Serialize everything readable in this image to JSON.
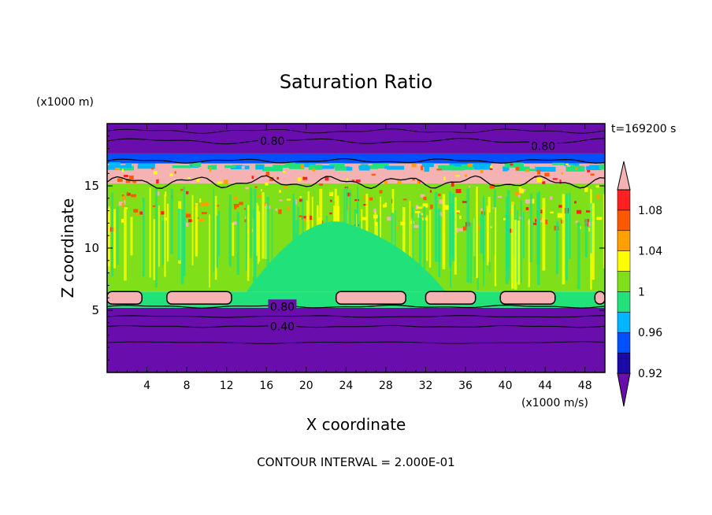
{
  "chart_data": {
    "type": "heatmap",
    "title": "Saturation Ratio",
    "xlabel": "X coordinate",
    "ylabel": "Z coordinate",
    "x_units": "(x1000 m/s)",
    "y_units": "(x1000 m)",
    "time_label": "t=169200 s",
    "footer": "CONTOUR INTERVAL = 2.000E-01",
    "xlim": [
      0,
      50
    ],
    "ylim": [
      0,
      20
    ],
    "x_ticks": [
      4,
      8,
      12,
      16,
      20,
      24,
      28,
      32,
      36,
      40,
      44,
      48
    ],
    "y_ticks": [
      5,
      10,
      15
    ],
    "contour_labels": [
      {
        "text": "0.80",
        "x": 16.6,
        "z": 18.6
      },
      {
        "text": "0.80",
        "x": 43.8,
        "z": 18.2
      },
      {
        "text": "0.80",
        "x": 17.6,
        "z": 5.3
      },
      {
        "text": "0.40",
        "x": 17.6,
        "z": 3.7
      }
    ],
    "layers": [
      {
        "z_from": 0.0,
        "z_to": 5.2,
        "level": "below 0.92",
        "color": "#6a0dad"
      },
      {
        "z_from": 5.2,
        "z_to": 6.5,
        "level": "0.98",
        "color": "#21e17b"
      },
      {
        "z_from": 6.5,
        "z_to": 15.2,
        "level": "0.98-1.02",
        "color": "#7fe01a"
      },
      {
        "z_from": 15.2,
        "z_to": 16.8,
        "level": "above 1.10",
        "color": "#f4b2b2"
      },
      {
        "z_from": 16.8,
        "z_to": 17.6,
        "level": "0.94",
        "color": "#0050ff"
      },
      {
        "z_from": 17.6,
        "z_to": 20.0,
        "level": "below 0.92",
        "color": "#6a0dad"
      }
    ],
    "colorbar": {
      "labels": [
        "1.08",
        "1.04",
        "1",
        "0.96",
        "0.92"
      ],
      "levels": [
        0.92,
        0.94,
        0.96,
        0.98,
        1.0,
        1.02,
        1.04,
        1.06,
        1.08,
        1.1
      ],
      "colors": [
        "#6a0dad",
        "#1a0aa6",
        "#0050ff",
        "#00b4ff",
        "#21e17b",
        "#7fe01a",
        "#ffff00",
        "#ffa000",
        "#ff5a00",
        "#ff2020",
        "#f4b2b2"
      ],
      "extend": "both"
    }
  }
}
